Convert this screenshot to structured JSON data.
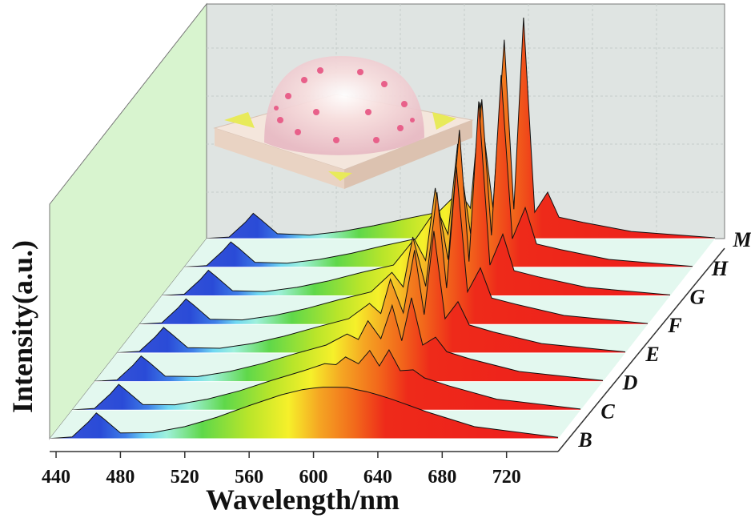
{
  "chart_data": {
    "type": "area",
    "xlabel": "Wavelength/nm",
    "ylabel": "Intensity(a.u.)",
    "xlim": [
      436,
      752
    ],
    "ylim": [
      0,
      100
    ],
    "xticks": [
      440,
      480,
      520,
      560,
      600,
      640,
      680,
      720
    ],
    "x": [
      436,
      450,
      460,
      465,
      470,
      480,
      500,
      520,
      540,
      560,
      580,
      593,
      600,
      606,
      614,
      621,
      627,
      633,
      640,
      648,
      655,
      670,
      700,
      752
    ],
    "series": [
      {
        "name": "B",
        "values": [
          0.1,
          0.8,
          7.4,
          11.5,
          8.7,
          2.6,
          2.7,
          5.4,
          9.6,
          14.8,
          19.6,
          21.9,
          22.6,
          23,
          23,
          22.9,
          21.9,
          21,
          19.6,
          17.8,
          16,
          12.1,
          5.4,
          0.6
        ]
      },
      {
        "name": "C",
        "values": [
          0.1,
          0.8,
          7.4,
          11.5,
          8.6,
          2.5,
          2.4,
          4.9,
          8.6,
          13.3,
          17.6,
          20.7,
          20.3,
          23.7,
          20.7,
          26.6,
          19.7,
          26.9,
          17.6,
          18,
          14.4,
          10.9,
          4.9,
          0.5
        ]
      },
      {
        "name": "D",
        "values": [
          0.1,
          0.7,
          7.3,
          11.4,
          8.6,
          2.4,
          2.2,
          4.5,
          8,
          12.3,
          16.3,
          21.2,
          18.8,
          27.1,
          19.1,
          34,
          18.2,
          37.4,
          16.3,
          19.8,
          13.3,
          10,
          4.5,
          0.5
        ]
      },
      {
        "name": "E",
        "values": [
          0.1,
          0.7,
          7.3,
          11.4,
          8.5,
          2.4,
          2.1,
          4.2,
          7.5,
          11.5,
          15.3,
          22.1,
          17.6,
          32.9,
          17.9,
          45.9,
          17.1,
          54.4,
          15.3,
          22.9,
          12.5,
          9.4,
          4.2,
          0.5
        ]
      },
      {
        "name": "F",
        "values": [
          0.1,
          0.7,
          7.3,
          11.4,
          8.5,
          2.3,
          2,
          4,
          7.1,
          11,
          14.5,
          23.2,
          16.7,
          39,
          17,
          58.9,
          16.2,
          70.5,
          14.5,
          25.2,
          11.8,
          9,
          4,
          0.4
        ]
      },
      {
        "name": "G",
        "values": [
          0.1,
          0.7,
          7.3,
          11.4,
          8.5,
          2.3,
          1.9,
          3.8,
          6.7,
          10.4,
          13.7,
          25.3,
          15.8,
          48.1,
          16.1,
          74,
          15.3,
          86.7,
          13.7,
          27.5,
          11.2,
          8.5,
          3.8,
          0.4
        ]
      },
      {
        "name": "H",
        "values": [
          0.1,
          0.7,
          7.3,
          11.3,
          8.5,
          2.2,
          1.8,
          3.5,
          6.2,
          9.6,
          12.7,
          26.2,
          14.7,
          55,
          15,
          74.9,
          14.2,
          85.7,
          12.7,
          26.6,
          10.4,
          7.9,
          3.5,
          0.4
        ]
      },
      {
        "name": "M",
        "values": [
          0.1,
          0.7,
          7.2,
          11.3,
          8.4,
          2.2,
          1.6,
          3.2,
          5.8,
          8.9,
          11.8,
          21.1,
          13.6,
          60.8,
          13.8,
          88.7,
          13.1,
          98.6,
          11.8,
          20.7,
          9.6,
          7.3,
          3.2,
          0.4
        ]
      }
    ]
  }
}
